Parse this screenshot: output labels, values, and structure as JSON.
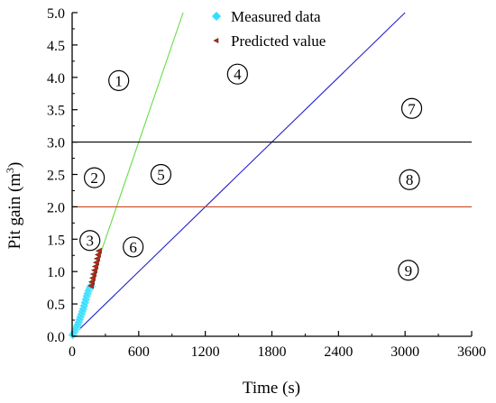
{
  "chart_data": {
    "type": "scatter",
    "xlabel": "Time (s)",
    "ylabel_main": "Pit gain (m",
    "ylabel_sup": "3",
    "ylabel_close": ")",
    "xlim": [
      0,
      3600
    ],
    "ylim": [
      0,
      5.0
    ],
    "x_ticks": [
      0,
      600,
      1200,
      1800,
      2400,
      3000,
      3600
    ],
    "x_tick_labels": [
      "0",
      "600",
      "1200",
      "1800",
      "2400",
      "3000",
      "3600"
    ],
    "y_ticks": [
      0.0,
      0.5,
      1.0,
      1.5,
      2.0,
      2.5,
      3.0,
      3.5,
      4.0,
      4.5,
      5.0
    ],
    "y_tick_labels": [
      "0.0",
      "0.5",
      "1.0",
      "1.5",
      "2.0",
      "2.5",
      "3.0",
      "3.5",
      "4.0",
      "4.5",
      "5.0"
    ],
    "grid": false,
    "legend_position": "top-right",
    "series": [
      {
        "name": "Measured data",
        "color": "#33ddff",
        "marker": "diamond",
        "points": [
          [
            5,
            0.02
          ],
          [
            12,
            0.04
          ],
          [
            20,
            0.06
          ],
          [
            28,
            0.09
          ],
          [
            36,
            0.12
          ],
          [
            44,
            0.15
          ],
          [
            52,
            0.18
          ],
          [
            60,
            0.22
          ],
          [
            68,
            0.26
          ],
          [
            76,
            0.3
          ],
          [
            84,
            0.34
          ],
          [
            92,
            0.38
          ],
          [
            100,
            0.42
          ],
          [
            108,
            0.47
          ],
          [
            116,
            0.52
          ],
          [
            124,
            0.57
          ],
          [
            132,
            0.62
          ],
          [
            140,
            0.66
          ],
          [
            148,
            0.7
          ],
          [
            156,
            0.73
          ],
          [
            164,
            0.76
          ],
          [
            172,
            0.78
          ]
        ]
      },
      {
        "name": "Predicted value",
        "color": "#bb2222",
        "marker": "triangle-left",
        "points": [
          [
            172,
            0.78
          ],
          [
            180,
            0.84
          ],
          [
            188,
            0.9
          ],
          [
            196,
            0.96
          ],
          [
            204,
            1.02
          ],
          [
            212,
            1.08
          ],
          [
            220,
            1.14
          ],
          [
            228,
            1.2
          ],
          [
            236,
            1.26
          ],
          [
            244,
            1.32
          ]
        ]
      }
    ],
    "lines": [
      {
        "kind": "segment",
        "color": "#66dd44",
        "from": [
          0,
          0
        ],
        "to": [
          1000,
          5.0
        ]
      },
      {
        "kind": "segment",
        "color": "#2222cc",
        "from": [
          0,
          0
        ],
        "to": [
          3000,
          5.0
        ]
      },
      {
        "kind": "hline",
        "color": "#000000",
        "y": 3.0
      },
      {
        "kind": "hline",
        "color": "#cc4422",
        "y": 2.0
      }
    ],
    "regions": [
      {
        "label": "1",
        "x": 420,
        "y": 3.95
      },
      {
        "label": "2",
        "x": 200,
        "y": 2.45
      },
      {
        "label": "3",
        "x": 160,
        "y": 1.48
      },
      {
        "label": "4",
        "x": 1490,
        "y": 4.05
      },
      {
        "label": "5",
        "x": 800,
        "y": 2.5
      },
      {
        "label": "6",
        "x": 550,
        "y": 1.38
      },
      {
        "label": "7",
        "x": 3060,
        "y": 3.52
      },
      {
        "label": "8",
        "x": 3040,
        "y": 2.42
      },
      {
        "label": "9",
        "x": 3030,
        "y": 1.02
      }
    ]
  }
}
